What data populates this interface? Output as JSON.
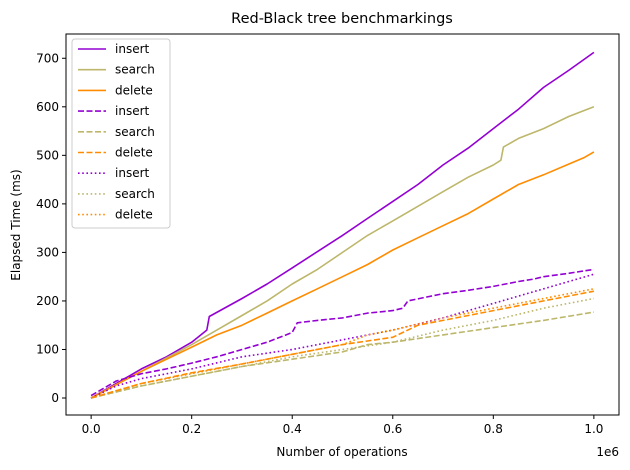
{
  "chart_data": {
    "type": "line",
    "title": "Red-Black tree benchmarkings",
    "xlabel": "Number of operations",
    "ylabel": "Elapsed Time (ms)",
    "x_offset_label": "1e6",
    "xlim": [
      -0.05,
      1.05
    ],
    "ylim": [
      -35,
      750
    ],
    "xticks": [
      0.0,
      0.2,
      0.4,
      0.6,
      0.8,
      1.0
    ],
    "xtick_labels": [
      "0.0",
      "0.2",
      "0.4",
      "0.6",
      "0.8",
      "1.0"
    ],
    "yticks": [
      0,
      100,
      200,
      300,
      400,
      500,
      600,
      700
    ],
    "ytick_labels": [
      "0",
      "100",
      "200",
      "300",
      "400",
      "500",
      "600",
      "700"
    ],
    "grid": false,
    "legend_position": "top-left",
    "series": [
      {
        "name": "insert",
        "color": "#9400d3",
        "style": "solid",
        "x": [
          0,
          0.05,
          0.1,
          0.15,
          0.2,
          0.23,
          0.235,
          0.3,
          0.35,
          0.4,
          0.5,
          0.55,
          0.6,
          0.65,
          0.7,
          0.75,
          0.8,
          0.85,
          0.9,
          0.95,
          1.0
        ],
        "y": [
          0,
          30,
          60,
          85,
          115,
          140,
          168,
          205,
          235,
          268,
          335,
          370,
          405,
          440,
          480,
          515,
          555,
          595,
          640,
          675,
          712
        ]
      },
      {
        "name": "search",
        "color": "#bdb76b",
        "style": "solid",
        "x": [
          0,
          0.1,
          0.2,
          0.25,
          0.3,
          0.35,
          0.4,
          0.45,
          0.5,
          0.55,
          0.6,
          0.65,
          0.7,
          0.75,
          0.8,
          0.815,
          0.82,
          0.85,
          0.9,
          0.95,
          1.0
        ],
        "y": [
          0,
          55,
          110,
          140,
          170,
          200,
          235,
          265,
          300,
          335,
          365,
          395,
          425,
          455,
          480,
          490,
          517,
          535,
          555,
          580,
          600
        ]
      },
      {
        "name": "delete",
        "color": "#ff8c00",
        "style": "solid",
        "x": [
          0,
          0.1,
          0.2,
          0.25,
          0.3,
          0.35,
          0.4,
          0.45,
          0.5,
          0.55,
          0.6,
          0.65,
          0.7,
          0.75,
          0.8,
          0.85,
          0.9,
          0.95,
          0.98,
          1.0
        ],
        "y": [
          0,
          55,
          105,
          130,
          150,
          175,
          200,
          225,
          250,
          275,
          305,
          330,
          355,
          380,
          410,
          440,
          460,
          482,
          495,
          507
        ]
      },
      {
        "name": "insert",
        "color": "#9400d3",
        "style": "dashed",
        "x": [
          0,
          0.05,
          0.1,
          0.15,
          0.2,
          0.25,
          0.3,
          0.35,
          0.4,
          0.41,
          0.45,
          0.5,
          0.55,
          0.6,
          0.62,
          0.63,
          0.7,
          0.75,
          0.8,
          0.85,
          0.88,
          0.9,
          0.95,
          1.0
        ],
        "y": [
          5,
          35,
          50,
          60,
          72,
          85,
          100,
          115,
          135,
          155,
          160,
          165,
          175,
          180,
          185,
          200,
          215,
          222,
          230,
          240,
          245,
          250,
          257,
          265
        ]
      },
      {
        "name": "search",
        "color": "#bdb76b",
        "style": "dashed",
        "x": [
          0,
          0.1,
          0.2,
          0.3,
          0.4,
          0.5,
          0.55,
          0.6,
          0.7,
          0.8,
          0.9,
          1.0
        ],
        "y": [
          0,
          25,
          45,
          65,
          80,
          95,
          110,
          115,
          130,
          145,
          160,
          177
        ]
      },
      {
        "name": "delete",
        "color": "#ff8c00",
        "style": "dashed",
        "x": [
          0,
          0.1,
          0.2,
          0.3,
          0.4,
          0.5,
          0.6,
          0.65,
          0.7,
          0.8,
          0.9,
          1.0
        ],
        "y": [
          0,
          30,
          52,
          70,
          90,
          110,
          125,
          150,
          160,
          180,
          200,
          220
        ]
      },
      {
        "name": "insert",
        "color": "#9400d3",
        "style": "dotted",
        "x": [
          0,
          0.05,
          0.1,
          0.2,
          0.3,
          0.4,
          0.5,
          0.6,
          0.7,
          0.8,
          0.9,
          1.0
        ],
        "y": [
          0,
          25,
          40,
          60,
          85,
          100,
          120,
          140,
          165,
          195,
          225,
          255
        ]
      },
      {
        "name": "search",
        "color": "#bdb76b",
        "style": "dotted",
        "x": [
          0,
          0.1,
          0.2,
          0.3,
          0.4,
          0.5,
          0.6,
          0.7,
          0.8,
          0.9,
          1.0
        ],
        "y": [
          0,
          25,
          45,
          65,
          85,
          100,
          115,
          140,
          160,
          185,
          205
        ]
      },
      {
        "name": "delete",
        "color": "#ff8c00",
        "style": "dotted",
        "x": [
          0,
          0.1,
          0.2,
          0.3,
          0.4,
          0.5,
          0.55,
          0.6,
          0.7,
          0.8,
          0.9,
          1.0
        ],
        "y": [
          0,
          30,
          50,
          70,
          90,
          110,
          130,
          140,
          165,
          185,
          205,
          225
        ]
      }
    ]
  }
}
